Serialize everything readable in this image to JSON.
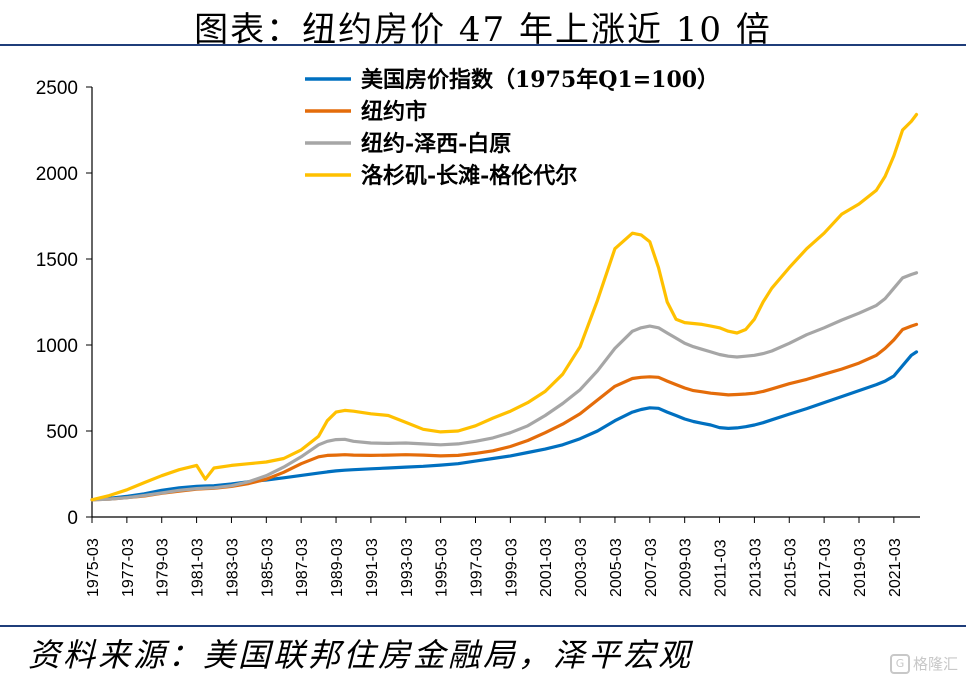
{
  "title": "图表：纽约房价 47 年上涨近 10 倍",
  "source": "资料来源：美国联邦住房金融局，泽平宏观",
  "watermark": "格隆汇",
  "chart_data": {
    "type": "line",
    "title": "图表：纽约房价 47 年上涨近 10 倍",
    "xlabel": "",
    "ylabel": "",
    "ylim": [
      0,
      2500
    ],
    "yticks": [
      0,
      500,
      1000,
      1500,
      2000,
      2500
    ],
    "xlim": [
      1975.0,
      2022.5
    ],
    "xticks": [
      "1975-03",
      "1977-03",
      "1979-03",
      "1981-03",
      "1983-03",
      "1985-03",
      "1987-03",
      "1989-03",
      "1991-03",
      "1993-03",
      "1995-03",
      "1997-03",
      "1999-03",
      "2001-03",
      "2003-03",
      "2005-03",
      "2007-03",
      "2009-03",
      "2011-03",
      "2013-03",
      "2015-03",
      "2017-03",
      "2019-03",
      "2021-03"
    ],
    "grid": false,
    "legend_position": "top-center",
    "x": [
      1975.0,
      1976.0,
      1977.0,
      1978.0,
      1979.0,
      1980.0,
      1981.0,
      1981.5,
      1982.0,
      1983.0,
      1984.0,
      1985.0,
      1986.0,
      1987.0,
      1988.0,
      1988.5,
      1989.0,
      1989.5,
      1990.0,
      1991.0,
      1992.0,
      1993.0,
      1994.0,
      1995.0,
      1996.0,
      1997.0,
      1998.0,
      1999.0,
      2000.0,
      2001.0,
      2002.0,
      2003.0,
      2004.0,
      2005.0,
      2006.0,
      2006.5,
      2007.0,
      2007.5,
      2008.0,
      2008.5,
      2009.0,
      2009.5,
      2010.0,
      2010.5,
      2011.0,
      2011.5,
      2012.0,
      2012.5,
      2013.0,
      2013.5,
      2014.0,
      2015.0,
      2016.0,
      2017.0,
      2018.0,
      2019.0,
      2020.0,
      2020.5,
      2021.0,
      2021.5,
      2022.0,
      2022.3
    ],
    "series": [
      {
        "name": "美国房价指数（1975年Q1=100）",
        "color": "#0070c0",
        "values": [
          100,
          108,
          120,
          135,
          155,
          170,
          178,
          180,
          182,
          192,
          205,
          215,
          228,
          242,
          255,
          262,
          268,
          272,
          275,
          280,
          285,
          290,
          295,
          302,
          310,
          325,
          340,
          355,
          375,
          395,
          420,
          455,
          500,
          560,
          610,
          625,
          635,
          632,
          610,
          590,
          570,
          555,
          545,
          535,
          520,
          515,
          518,
          525,
          535,
          548,
          565,
          598,
          630,
          665,
          700,
          735,
          770,
          790,
          820,
          880,
          940,
          960
        ]
      },
      {
        "name": "纽约市",
        "color": "#e46c0a",
        "values": [
          100,
          104,
          112,
          122,
          138,
          150,
          162,
          165,
          167,
          178,
          195,
          220,
          260,
          310,
          350,
          358,
          360,
          362,
          360,
          358,
          360,
          362,
          360,
          355,
          358,
          370,
          385,
          410,
          445,
          490,
          540,
          600,
          680,
          760,
          805,
          812,
          815,
          812,
          790,
          770,
          750,
          735,
          728,
          720,
          715,
          710,
          712,
          715,
          720,
          730,
          745,
          775,
          800,
          830,
          860,
          895,
          940,
          980,
          1030,
          1090,
          1110,
          1120
        ]
      },
      {
        "name": "纽约-泽西-白原",
        "color": "#a6a6a6",
        "values": [
          100,
          104,
          112,
          125,
          140,
          155,
          165,
          168,
          170,
          182,
          205,
          240,
          290,
          350,
          420,
          440,
          450,
          452,
          440,
          430,
          428,
          430,
          425,
          420,
          425,
          440,
          460,
          490,
          530,
          590,
          660,
          740,
          850,
          980,
          1080,
          1100,
          1110,
          1100,
          1070,
          1040,
          1010,
          990,
          975,
          960,
          945,
          935,
          930,
          935,
          940,
          950,
          965,
          1010,
          1060,
          1100,
          1145,
          1185,
          1230,
          1270,
          1330,
          1390,
          1410,
          1420
        ]
      },
      {
        "name": "洛杉矶-长滩-格伦代尔",
        "color": "#ffc000",
        "values": [
          100,
          125,
          158,
          200,
          240,
          275,
          300,
          220,
          285,
          300,
          310,
          320,
          340,
          390,
          470,
          560,
          610,
          620,
          615,
          600,
          590,
          550,
          510,
          495,
          500,
          530,
          575,
          615,
          665,
          730,
          830,
          990,
          1260,
          1560,
          1650,
          1640,
          1600,
          1450,
          1250,
          1150,
          1130,
          1125,
          1120,
          1110,
          1100,
          1080,
          1070,
          1090,
          1150,
          1250,
          1330,
          1450,
          1560,
          1650,
          1760,
          1820,
          1900,
          1980,
          2100,
          2250,
          2300,
          2340
        ]
      }
    ]
  }
}
